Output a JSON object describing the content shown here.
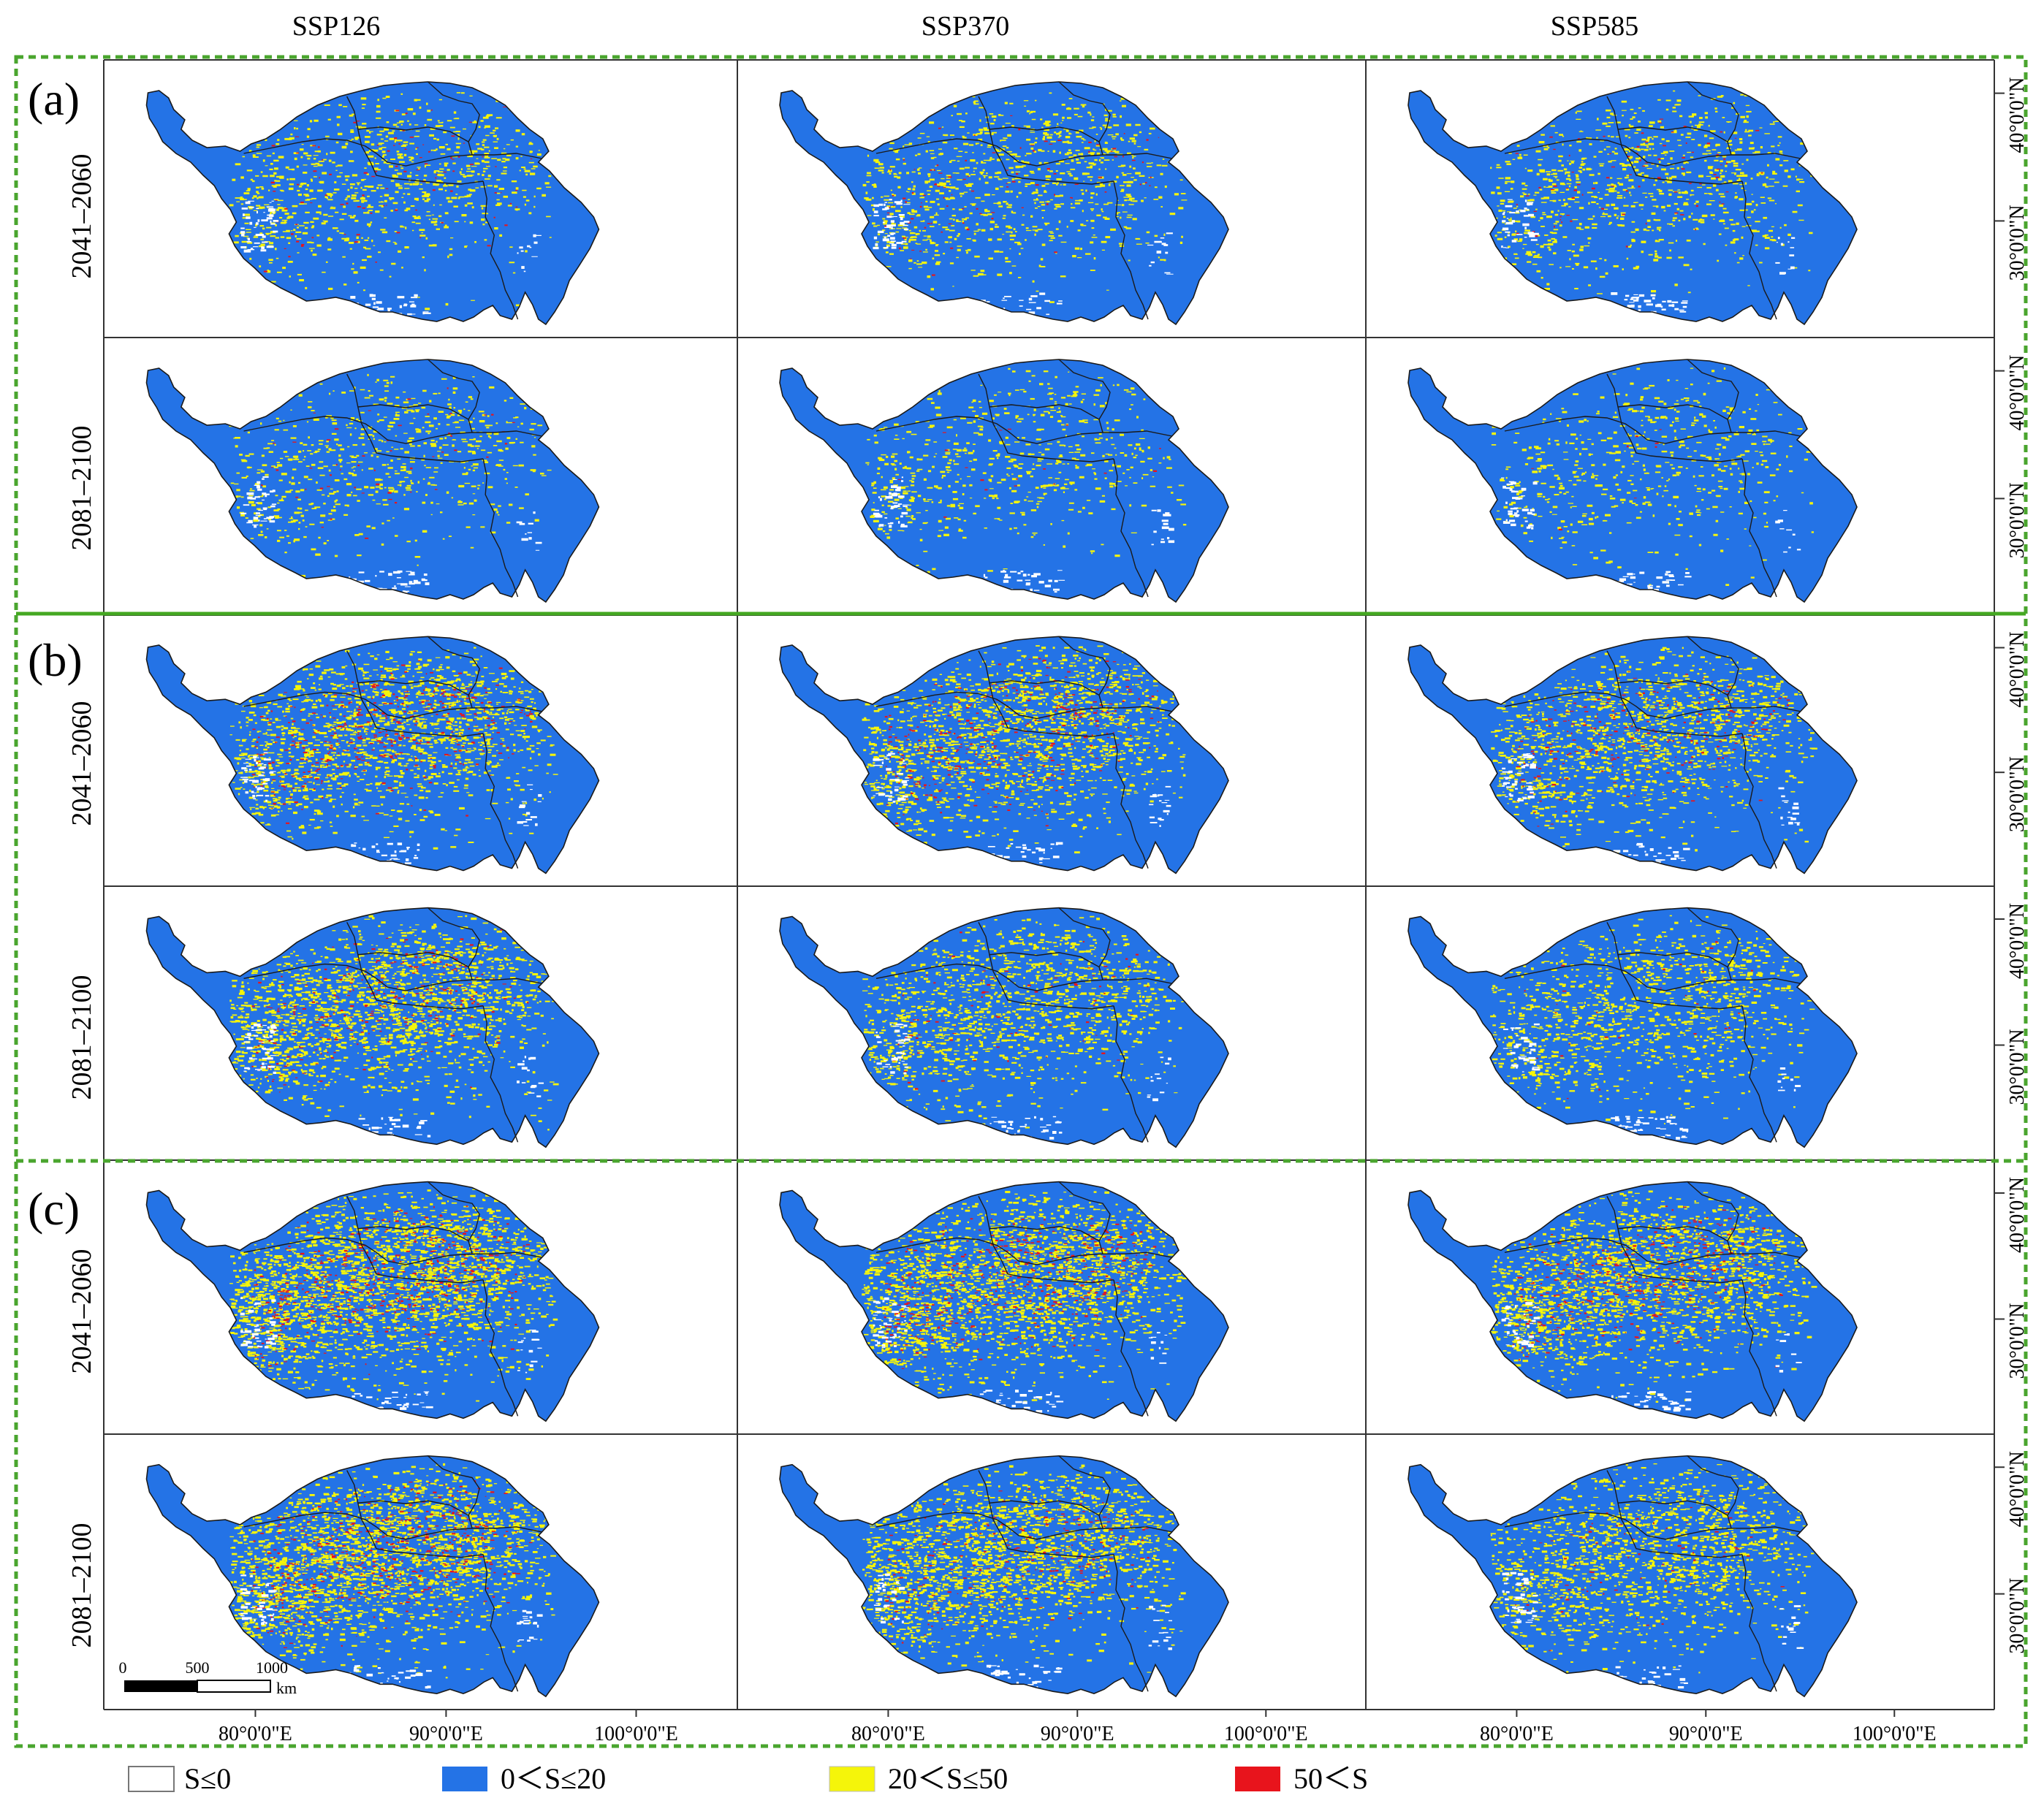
{
  "columns": [
    "SSP126",
    "SSP370",
    "SSP585"
  ],
  "groups": [
    {
      "label": "(a)",
      "rows": [
        "2041–2060",
        "2081–2100"
      ]
    },
    {
      "label": "(b)",
      "rows": [
        "2041–2060",
        "2081–2100"
      ]
    },
    {
      "label": "(c)",
      "rows": [
        "2041–2060",
        "2081–2100"
      ]
    }
  ],
  "lat_ticks": [
    "40°0'0\"N",
    "30°0'0\"N"
  ],
  "lon_ticks": [
    "80°0'0\"E",
    "90°0'0\"E",
    "100°0'0\"E"
  ],
  "scale_bar": {
    "labels": [
      "0",
      "500",
      "1000"
    ],
    "unit": "km"
  },
  "legend": [
    {
      "label": "S≤0",
      "color": "#ffffff"
    },
    {
      "label": "0＜S≤20",
      "color": "#2473e6"
    },
    {
      "label": "20＜S≤50",
      "color": "#f5f50a"
    },
    {
      "label": "50＜S",
      "color": "#e8141c"
    }
  ],
  "colors": {
    "frame_dashed": "#4aa52e",
    "frame_solid": "#44a821",
    "class_nodata": "#ffffff",
    "class_low": "#2473e6",
    "class_mid": "#f5f50a",
    "class_high": "#e8141c"
  },
  "panel_intensity": [
    [
      {
        "yellow": 0.16,
        "red": 0.012
      },
      {
        "yellow": 0.17,
        "red": 0.012
      },
      {
        "yellow": 0.16,
        "red": 0.01
      }
    ],
    [
      {
        "yellow": 0.12,
        "red": 0.006
      },
      {
        "yellow": 0.11,
        "red": 0.002
      },
      {
        "yellow": 0.1,
        "red": 0.001
      }
    ],
    [
      {
        "yellow": 0.3,
        "red": 0.05
      },
      {
        "yellow": 0.3,
        "red": 0.045
      },
      {
        "yellow": 0.26,
        "red": 0.03
      }
    ],
    [
      {
        "yellow": 0.34,
        "red": 0.035
      },
      {
        "yellow": 0.25,
        "red": 0.01
      },
      {
        "yellow": 0.22,
        "red": 0.004
      }
    ],
    [
      {
        "yellow": 0.44,
        "red": 0.06
      },
      {
        "yellow": 0.4,
        "red": 0.055
      },
      {
        "yellow": 0.36,
        "red": 0.05
      }
    ],
    [
      {
        "yellow": 0.42,
        "red": 0.06
      },
      {
        "yellow": 0.36,
        "red": 0.03
      },
      {
        "yellow": 0.28,
        "red": 0.01
      }
    ]
  ]
}
